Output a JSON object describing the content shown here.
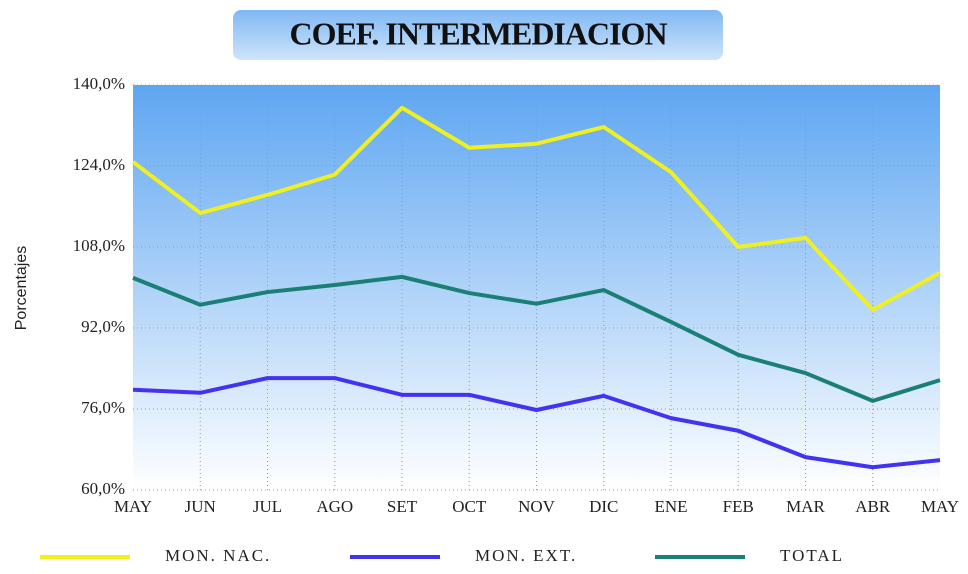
{
  "chart_data": {
    "type": "line",
    "title": "COEF. INTERMEDIACION",
    "y_label": "Porcentajes",
    "categories": [
      "MAY",
      "JUN",
      "JUL",
      "AGO",
      "SET",
      "OCT",
      "NOV",
      "DIC",
      "ENE",
      "FEB",
      "MAR",
      "ABR",
      "MAY"
    ],
    "series": [
      {
        "name": "MON. NAC.",
        "color": "#f0f020",
        "values": [
          124.8,
          114.7,
          118.3,
          122.3,
          135.5,
          127.6,
          128.4,
          131.7,
          122.8,
          108.0,
          109.8,
          95.6,
          102.9
        ]
      },
      {
        "name": "MON. EXT.",
        "color": "#4433ee",
        "values": [
          79.8,
          79.2,
          82.1,
          82.1,
          78.8,
          78.8,
          75.8,
          78.6,
          74.2,
          71.7,
          66.5,
          64.5,
          65.9
        ]
      },
      {
        "name": "TOTAL",
        "color": "#1a7f74",
        "values": [
          101.9,
          96.6,
          99.1,
          100.5,
          102.1,
          98.9,
          96.8,
          99.5,
          93.2,
          86.7,
          83.1,
          77.6,
          81.7
        ]
      }
    ],
    "ylim": [
      60,
      140
    ],
    "yticks": [
      {
        "value": 60,
        "label": "60,0%"
      },
      {
        "value": 76,
        "label": "76,0%"
      },
      {
        "value": 92,
        "label": "92,0%"
      },
      {
        "value": 108,
        "label": "108,0%"
      },
      {
        "value": 124,
        "label": "124,0%"
      },
      {
        "value": 140,
        "label": "140,0%"
      }
    ],
    "grid": true
  }
}
